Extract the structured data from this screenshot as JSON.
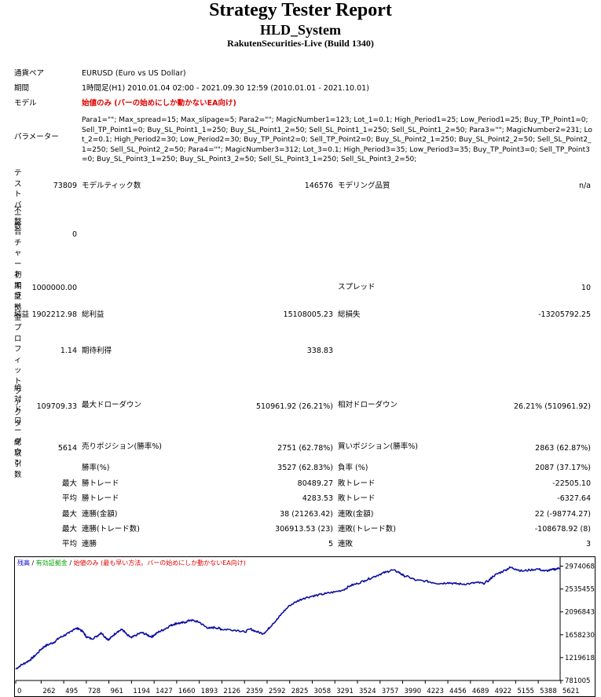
{
  "header": {
    "title": "Strategy Tester Report",
    "subtitle": "HLD_System",
    "build": "RakutenSecurities-Live (Build 1340)"
  },
  "info": {
    "pair_label": "通貨ペア",
    "pair_value": "EURUSD (Euro vs US Dollar)",
    "period_label": "期間",
    "period_value": "1時間足(H1) 2010.01.04 02:00 - 2021.09.30 12:59 (2010.01.01 - 2021.10.01)",
    "model_label": "モデル",
    "model_value": "始値のみ (バーの始めにしか動かないEA向け)",
    "params_label": "パラメーター",
    "params_value": "Para1=\"\"; Max_spread=15; Max_slipage=5; Para2=\"\"; MagicNumber1=123; Lot_1=0.1; High_Period1=25; Low_Period1=25; Buy_TP_Point1=0; Sell_TP_Point1=0; Buy_SL_Point1_1=250; Buy_SL_Point1_2=50; Sell_SL_Point1_1=250; Sell_SL_Point1_2=50; Para3=\"\"; MagicNumber2=231; Lot_2=0.1; High_Period2=30; Low_Period2=30; Buy_TP_Point2=0; Sell_TP_Point2=0; Buy_SL_Point2_1=250; Buy_SL_Point2_2=50; Sell_SL_Point2_1=250; Sell_SL_Point2_2=50; Para4=\"\"; MagicNumber3=312; Lot_3=0.1; High_Period3=35; Low_Period3=35; Buy_TP_Point3=0; Sell_TP_Point3=0; Buy_SL_Point3_1=250; Buy_SL_Point3_2=50; Sell_SL_Point3_1=250; Sell_SL_Point3_2=50;"
  },
  "stats": {
    "bars_label": "テストバー数",
    "bars_value": "73809",
    "ticks_label": "モデルティック数",
    "ticks_value": "146576",
    "quality_label": "モデリング品質",
    "quality_value": "n/a",
    "mismatch_label": "不整合チャートエラー",
    "mismatch_value": "0",
    "deposit_label": "初期証拠金",
    "deposit_value": "1000000.00",
    "spread_label": "スプレッド",
    "spread_value": "10",
    "net_label": "純益",
    "net_value": "1902212.98",
    "gross_profit_label": "総利益",
    "gross_profit_value": "15108005.23",
    "gross_loss_label": "総損失",
    "gross_loss_value": "-13205792.25",
    "pf_label": "プロフィットファクタ",
    "pf_value": "1.14",
    "payoff_label": "期待利得",
    "payoff_value": "338.83",
    "abs_dd_label": "絶対ドローダウン",
    "abs_dd_value": "109709.33",
    "max_dd_label": "最大ドローダウン",
    "max_dd_value": "510961.92 (26.21%)",
    "rel_dd_label": "相対ドローダウン",
    "rel_dd_value": "26.21% (510961.92)",
    "trades_label": "総取引数",
    "trades_value": "5614",
    "short_label": "売りポジション(勝率%)",
    "short_value": "2751 (62.78%)",
    "long_label": "買いポジション(勝率%)",
    "long_value": "2863 (62.87%)",
    "win_pct_label": "勝率(%)",
    "win_pct_value": "3527 (62.83%)",
    "loss_pct_label": "負率 (%)",
    "loss_pct_value": "2087 (37.17%)",
    "max_label": "最大",
    "avg_label": "平均",
    "lg_win_label": "勝トレード",
    "lg_win_value": "80489.27",
    "lg_loss_label": "敗トレード",
    "lg_loss_value": "-22505.10",
    "av_win_label": "勝トレード",
    "av_win_value": "4283.53",
    "av_loss_label": "敗トレード",
    "av_loss_value": "-6327.64",
    "mc_wins_label": "連勝(金額)",
    "mc_wins_value": "38 (21263.42)",
    "mc_losses_label": "連敗(金額)",
    "mc_losses_value": "22 (-98774.27)",
    "mcp_label": "連勝(トレード数)",
    "mcp_value": "306913.53 (23)",
    "mcl_label": "連敗(トレード数)",
    "mcl_value": "-108678.92 (8)",
    "aw_label": "連勝",
    "aw_value": "5",
    "al_label": "連敗",
    "al_value": "3"
  },
  "chart_data": {
    "type": "line",
    "legend": [
      {
        "text": "残高",
        "color": "#0000c8"
      },
      {
        "text": " / ",
        "color": "#000000"
      },
      {
        "text": "有効証拠金",
        "color": "#00a000"
      },
      {
        "text": " / ",
        "color": "#000000"
      },
      {
        "text": "始値のみ (最も早い方法。バーの始めにしか動かないEA向け)",
        "color": "#e00000"
      }
    ],
    "xlim": [
      0,
      5614
    ],
    "ylim": [
      781005,
      3147000
    ],
    "x_ticks": [
      "0",
      "262",
      "495",
      "728",
      "961",
      "1194",
      "1427",
      "1660",
      "1893",
      "2126",
      "2359",
      "2592",
      "2825",
      "3058",
      "3291",
      "3524",
      "3757",
      "3990",
      "4223",
      "4456",
      "4689",
      "4922",
      "5155",
      "5388",
      "5621"
    ],
    "y_ticks": [
      "2974068",
      "2535455",
      "2096843",
      "1658230",
      "1219618",
      "781005"
    ],
    "line_color": "#1010a0",
    "series": [
      {
        "x": [
          0,
          50,
          100,
          150,
          200,
          262,
          300,
          350,
          400,
          450,
          495,
          550,
          600,
          650,
          700,
          728,
          780,
          830,
          880,
          930,
          961,
          1000,
          1050,
          1100,
          1150,
          1194,
          1250,
          1300,
          1350,
          1400,
          1427,
          1480,
          1530,
          1580,
          1630,
          1660,
          1700,
          1750,
          1800,
          1850,
          1893,
          1950,
          2000,
          2050,
          2100,
          2126,
          2200,
          2300,
          2359,
          2420,
          2480,
          2550,
          2592,
          2650,
          2700,
          2750,
          2825,
          2900,
          2970,
          3058,
          3120,
          3200,
          3291,
          3380,
          3450,
          3524,
          3600,
          3680,
          3757,
          3820,
          3880,
          3950,
          3990,
          4060,
          4130,
          4223,
          4300,
          4380,
          4456,
          4530,
          4600,
          4689,
          4760,
          4820,
          4880,
          4922,
          4980,
          5050,
          5100,
          5155,
          5220,
          5300,
          5388,
          5450,
          5520,
          5570,
          5614
        ],
        "y": [
          1000000,
          1070000,
          1120000,
          1180000,
          1260000,
          1380000,
          1440000,
          1480000,
          1520000,
          1600000,
          1640000,
          1690000,
          1770000,
          1780000,
          1700000,
          1620000,
          1580000,
          1620000,
          1700000,
          1600000,
          1560000,
          1640000,
          1720000,
          1760000,
          1650000,
          1600000,
          1660000,
          1700000,
          1660000,
          1620000,
          1650000,
          1720000,
          1760000,
          1820000,
          1860000,
          1880000,
          1880000,
          1900000,
          1940000,
          1920000,
          1900000,
          1820000,
          1780000,
          1800000,
          1780000,
          1760000,
          1760000,
          1740000,
          1710000,
          1770000,
          1720000,
          1680000,
          1740000,
          1870000,
          1960000,
          2080000,
          2220000,
          2300000,
          2360000,
          2400000,
          2420000,
          2450000,
          2480000,
          2520000,
          2600000,
          2640000,
          2700000,
          2760000,
          2820000,
          2860000,
          2900000,
          2860000,
          2800000,
          2760000,
          2700000,
          2690000,
          2660000,
          2640000,
          2660000,
          2640000,
          2630000,
          2640000,
          2660000,
          2640000,
          2700000,
          2780000,
          2840000,
          2900000,
          2950000,
          2920000,
          2880000,
          2900000,
          2920000,
          2880000,
          2900000,
          2920000,
          2940000
        ]
      }
    ]
  }
}
